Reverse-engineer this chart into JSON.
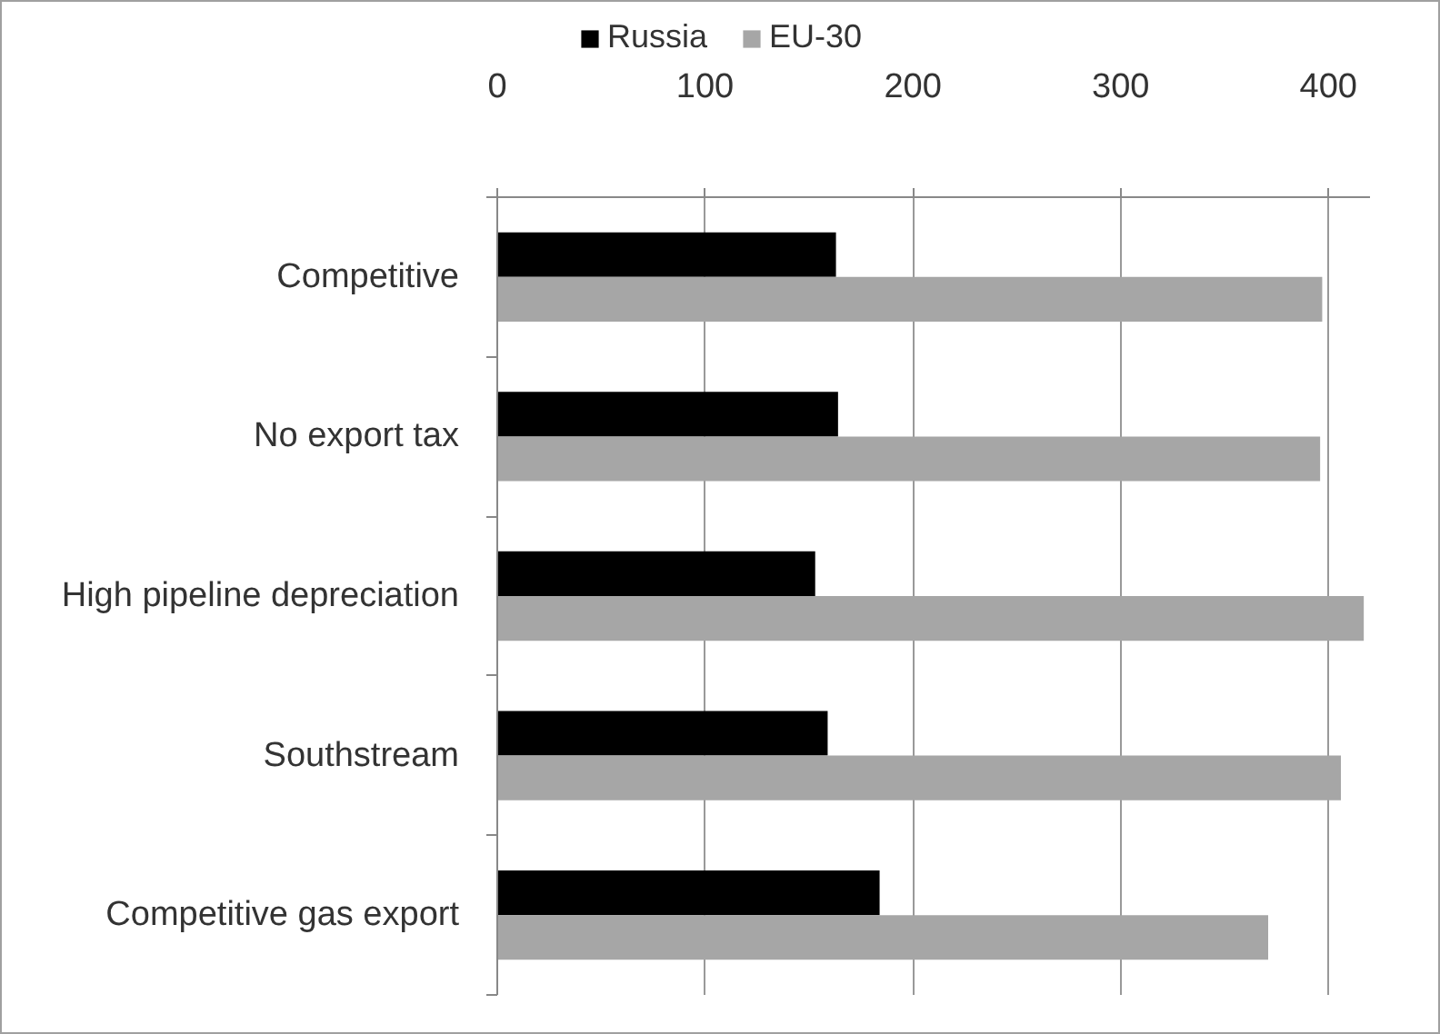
{
  "chart_data": {
    "type": "bar",
    "orientation": "horizontal",
    "categories": [
      "Competitive",
      "No export tax",
      "High pipeline depreciation",
      "Southstream",
      "Competitive gas export"
    ],
    "series": [
      {
        "name": "Russia",
        "color": "#000000",
        "values": [
          163,
          164,
          153,
          159,
          184
        ]
      },
      {
        "name": "EU-30",
        "color": "#a6a6a6",
        "values": [
          397,
          396,
          417,
          406,
          371
        ]
      }
    ],
    "xlim": [
      0,
      420
    ],
    "xticks": [
      0,
      100,
      200,
      300,
      400
    ],
    "grid": "x",
    "legend": "top"
  }
}
